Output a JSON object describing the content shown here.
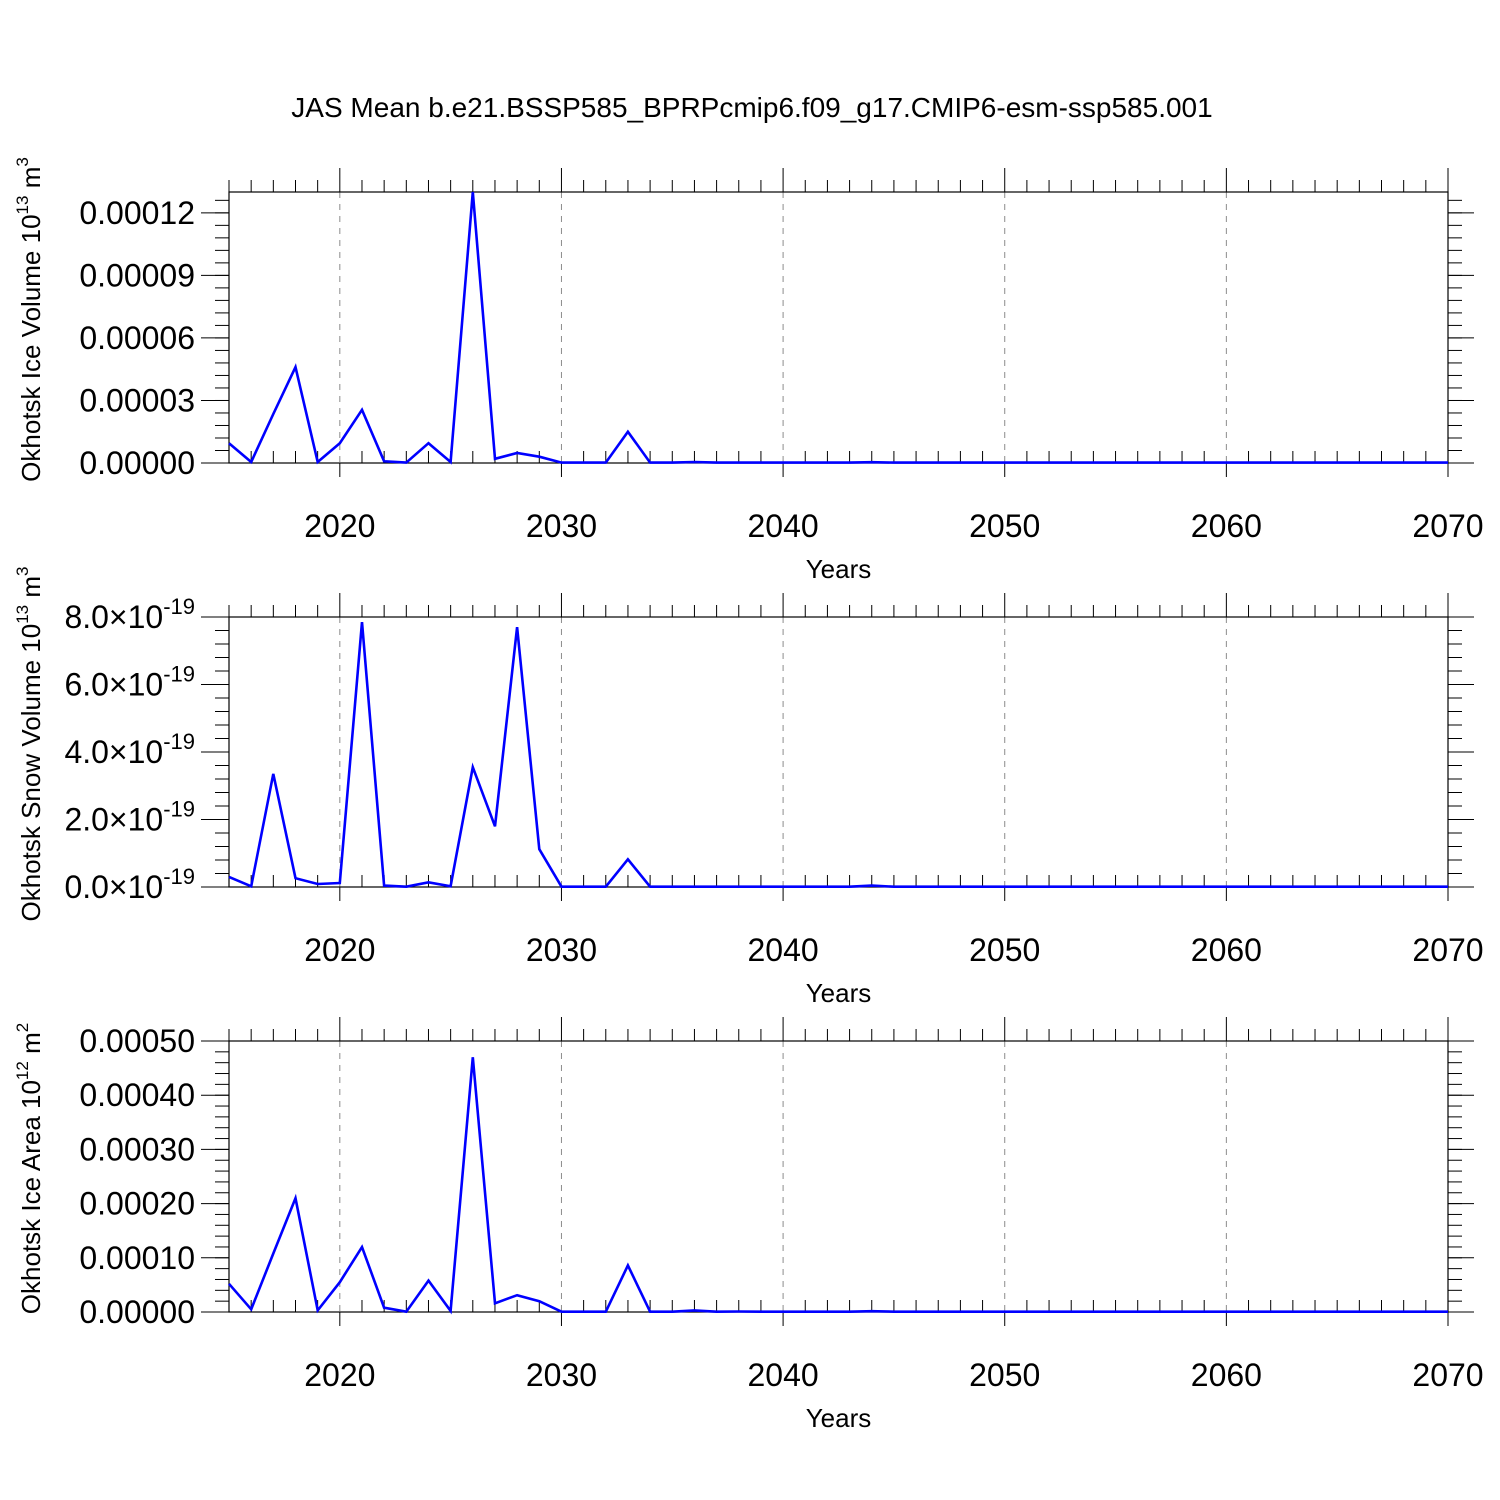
{
  "title": "JAS Mean b.e21.BSSP585_BPRPcmip6.f09_g17.CMIP6-esm-ssp585.001",
  "colors": {
    "line": "#0000ff",
    "axis": "#000000",
    "grid": "#8c8c8c"
  },
  "chart_data": [
    {
      "type": "line",
      "xlabel": "Years",
      "ylabel": {
        "text": "Okhotsk Ice Volume 10",
        "sup": "13",
        "unit": " m",
        "unit_sup": "3"
      },
      "xlim": [
        2015,
        2070
      ],
      "ylim": [
        0,
        0.00013
      ],
      "xticks": [
        "2020",
        "2030",
        "2040",
        "2050",
        "2060",
        "2070"
      ],
      "yticks": [
        {
          "value": 0,
          "label": "0.00000"
        },
        {
          "value": 3e-05,
          "label": "0.00003"
        },
        {
          "value": 6e-05,
          "label": "0.00006"
        },
        {
          "value": 9e-05,
          "label": "0.00009"
        },
        {
          "value": 0.00012,
          "label": "0.00012"
        }
      ],
      "grid": "vertical dashed at major x ticks",
      "series": [
        {
          "x": [
            2015,
            2016,
            2017,
            2018,
            2019,
            2020,
            2021,
            2022,
            2023,
            2024,
            2025,
            2026,
            2027,
            2028,
            2029,
            2030,
            2031,
            2032,
            2033,
            2034,
            2035,
            2036,
            2037,
            2038,
            2039,
            2040,
            2041,
            2042,
            2043,
            2044,
            2045,
            2046,
            2047,
            2048,
            2049,
            2050,
            2051,
            2052,
            2053,
            2054,
            2055,
            2056,
            2057,
            2058,
            2059,
            2060,
            2061,
            2062,
            2063,
            2064,
            2065,
            2066,
            2067,
            2068,
            2069,
            2070
          ],
          "values": [
            9.5e-06,
            5e-07,
            2.35e-05,
            4.6e-05,
            5e-07,
            9.5e-06,
            2.55e-05,
            8e-07,
            2e-07,
            9.5e-06,
            5e-07,
            0.00013,
            2e-06,
            4.8e-06,
            3e-06,
            2e-07,
            2e-07,
            2e-07,
            1.5e-05,
            2e-07,
            2e-07,
            5e-07,
            2e-07,
            2e-07,
            2e-07,
            2e-07,
            2e-07,
            2e-07,
            2e-07,
            4e-07,
            2e-07,
            2e-07,
            2e-07,
            2e-07,
            2e-07,
            2e-07,
            2e-07,
            2e-07,
            2e-07,
            2e-07,
            2e-07,
            2e-07,
            2e-07,
            2e-07,
            2e-07,
            2e-07,
            2e-07,
            2e-07,
            2e-07,
            2e-07,
            2e-07,
            2e-07,
            2e-07,
            2e-07,
            2e-07,
            2e-07
          ]
        }
      ]
    },
    {
      "type": "line",
      "xlabel": "Years",
      "ylabel": {
        "text": "Okhotsk Snow Volume 10",
        "sup": "13",
        "unit": " m",
        "unit_sup": "3"
      },
      "xlim": [
        2015,
        2070
      ],
      "ylim": [
        0,
        8e-19
      ],
      "xticks": [
        "2020",
        "2030",
        "2040",
        "2050",
        "2060",
        "2070"
      ],
      "yticks": [
        {
          "value": 0,
          "label": "0.0",
          "sci": "×10",
          "exp": "-19"
        },
        {
          "value": 2e-19,
          "label": "2.0",
          "sci": "×10",
          "exp": "-19"
        },
        {
          "value": 4e-19,
          "label": "4.0",
          "sci": "×10",
          "exp": "-19"
        },
        {
          "value": 6e-19,
          "label": "6.0",
          "sci": "×10",
          "exp": "-19"
        },
        {
          "value": 8e-19,
          "label": "8.0",
          "sci": "×10",
          "exp": "-19"
        }
      ],
      "grid": "vertical dashed at major x ticks",
      "series": [
        {
          "x": [
            2015,
            2016,
            2017,
            2018,
            2019,
            2020,
            2021,
            2022,
            2023,
            2024,
            2025,
            2026,
            2027,
            2028,
            2029,
            2030,
            2031,
            2032,
            2033,
            2034,
            2035,
            2036,
            2037,
            2038,
            2039,
            2040,
            2041,
            2042,
            2043,
            2044,
            2045,
            2046,
            2047,
            2048,
            2049,
            2050,
            2051,
            2052,
            2053,
            2054,
            2055,
            2056,
            2057,
            2058,
            2059,
            2060,
            2061,
            2062,
            2063,
            2064,
            2065,
            2066,
            2067,
            2068,
            2069,
            2070
          ],
          "values": [
            3e-20,
            2e-21,
            3.35e-19,
            2.6e-20,
            9e-21,
            1.2e-20,
            7.85e-19,
            4e-21,
            1e-21,
            1.4e-20,
            2e-21,
            3.55e-19,
            1.8e-19,
            7.7e-19,
            1.12e-19,
            1e-21,
            1e-21,
            1e-21,
            8.2e-20,
            1e-21,
            1e-21,
            1e-21,
            1e-21,
            1e-21,
            1e-21,
            1e-21,
            1e-21,
            1e-21,
            1e-21,
            4e-21,
            1e-21,
            1e-21,
            1e-21,
            1e-21,
            1e-21,
            1e-21,
            1e-21,
            1e-21,
            1e-21,
            1e-21,
            1e-21,
            1e-21,
            1e-21,
            1e-21,
            1e-21,
            1e-21,
            1e-21,
            1e-21,
            1e-21,
            1e-21,
            1e-21,
            1e-21,
            1e-21,
            1e-21,
            1e-21,
            1e-21
          ]
        }
      ]
    },
    {
      "type": "line",
      "xlabel": "Years",
      "ylabel": {
        "text": "Okhotsk Ice Area 10",
        "sup": "12",
        "unit": " m",
        "unit_sup": "2"
      },
      "xlim": [
        2015,
        2070
      ],
      "ylim": [
        0,
        0.0005
      ],
      "xticks": [
        "2020",
        "2030",
        "2040",
        "2050",
        "2060",
        "2070"
      ],
      "yticks": [
        {
          "value": 0,
          "label": "0.00000"
        },
        {
          "value": 0.0001,
          "label": "0.00010"
        },
        {
          "value": 0.0002,
          "label": "0.00020"
        },
        {
          "value": 0.0003,
          "label": "0.00030"
        },
        {
          "value": 0.0004,
          "label": "0.00040"
        },
        {
          "value": 0.0005,
          "label": "0.00050"
        }
      ],
      "grid": "vertical dashed at major x ticks",
      "series": [
        {
          "x": [
            2015,
            2016,
            2017,
            2018,
            2019,
            2020,
            2021,
            2022,
            2023,
            2024,
            2025,
            2026,
            2027,
            2028,
            2029,
            2030,
            2031,
            2032,
            2033,
            2034,
            2035,
            2036,
            2037,
            2038,
            2039,
            2040,
            2041,
            2042,
            2043,
            2044,
            2045,
            2046,
            2047,
            2048,
            2049,
            2050,
            2051,
            2052,
            2053,
            2054,
            2055,
            2056,
            2057,
            2058,
            2059,
            2060,
            2061,
            2062,
            2063,
            2064,
            2065,
            2066,
            2067,
            2068,
            2069,
            2070
          ],
          "values": [
            5.2e-05,
            5e-06,
            0.000108,
            0.00021,
            3e-06,
            5.5e-05,
            0.00012,
            8e-06,
            5e-07,
            5.8e-05,
            2e-06,
            0.00047,
            1.6e-05,
            3.1e-05,
            2e-05,
            5e-07,
            5e-07,
            5e-07,
            8.6e-05,
            5e-07,
            5e-07,
            3e-06,
            5e-07,
            1e-06,
            5e-07,
            5e-07,
            5e-07,
            5e-07,
            5e-07,
            1.5e-06,
            5e-07,
            5e-07,
            5e-07,
            5e-07,
            5e-07,
            5e-07,
            5e-07,
            5e-07,
            5e-07,
            5e-07,
            5e-07,
            5e-07,
            5e-07,
            5e-07,
            5e-07,
            5e-07,
            5e-07,
            5e-07,
            5e-07,
            5e-07,
            5e-07,
            5e-07,
            5e-07,
            5e-07,
            5e-07,
            5e-07
          ]
        }
      ]
    }
  ]
}
